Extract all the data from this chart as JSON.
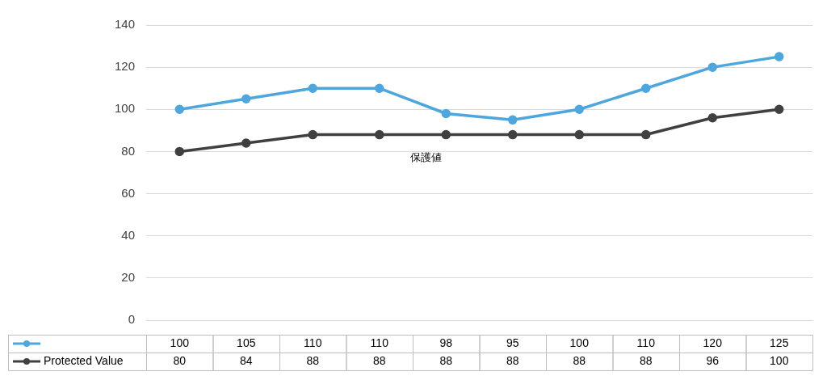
{
  "chart_data": {
    "type": "line",
    "categories": [
      null,
      null,
      null,
      null,
      null,
      null,
      null,
      null,
      null,
      null
    ],
    "series": [
      {
        "color": "#4ea6dc",
        "values": [
          100,
          105,
          110,
          110,
          98,
          95,
          100,
          110,
          120,
          125
        ]
      },
      {
        "name": "Protected Value",
        "color": "#404040",
        "values": [
          80,
          84,
          88,
          88,
          88,
          88,
          88,
          88,
          96,
          100
        ]
      }
    ],
    "ylim": [
      0,
      140
    ],
    "yticks": [
      0,
      20,
      40,
      60,
      80,
      100,
      120,
      140
    ],
    "grid": "y",
    "marker": "circle",
    "line_style": "solid",
    "data_labels": true,
    "legend": "bottom left",
    "annotations": [
      "保護値"
    ]
  }
}
